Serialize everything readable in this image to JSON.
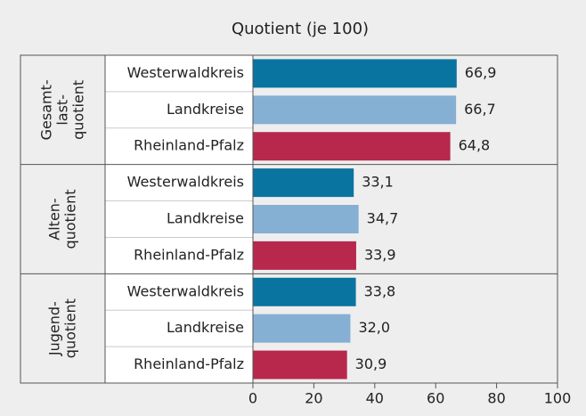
{
  "chart_data": {
    "type": "bar",
    "orientation": "horizontal",
    "title": "Quotient (je 100)",
    "categories": [
      [
        "Gesamt-",
        "last-",
        "quotient"
      ],
      [
        "Alten-",
        "quotient"
      ],
      [
        "Jugend-",
        "quotient"
      ]
    ],
    "series": [
      {
        "name": "Westerwaldkreis",
        "color": "#0a74a0",
        "values": [
          66.9,
          33.1,
          33.8
        ],
        "value_labels": [
          "66,9",
          "33,1",
          "33,8"
        ]
      },
      {
        "name": "Landkreise",
        "color": "#86afd4",
        "values": [
          66.7,
          34.7,
          32.0
        ],
        "value_labels": [
          "66,7",
          "34,7",
          "32,0"
        ]
      },
      {
        "name": "Rheinland-Pfalz",
        "color": "#b8284c",
        "values": [
          64.8,
          33.9,
          30.9
        ],
        "value_labels": [
          "64,8",
          "33,9",
          "30,9"
        ]
      }
    ],
    "xlim": [
      0,
      100
    ],
    "xticks": [
      0,
      20,
      40,
      60,
      80,
      100
    ],
    "grid": false
  }
}
